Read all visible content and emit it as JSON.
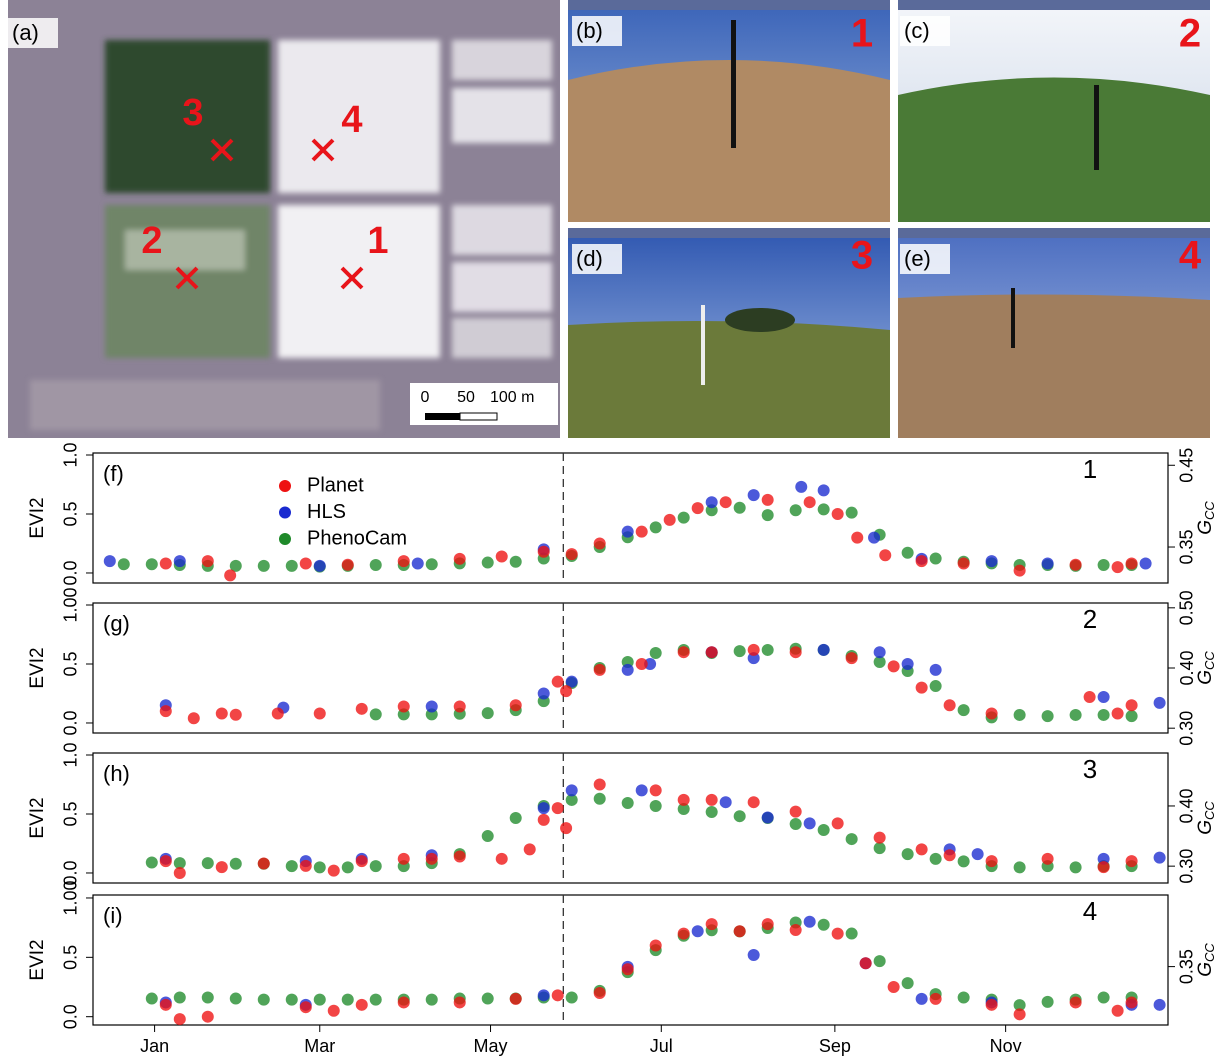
{
  "images": {
    "satellite": {
      "label": "(a)",
      "sites": [
        "1",
        "2",
        "3",
        "4"
      ],
      "scale": [
        "0",
        "50",
        "100 m"
      ]
    },
    "photos": [
      {
        "label": "(b)",
        "site": "1"
      },
      {
        "label": "(c)",
        "site": "2"
      },
      {
        "label": "(d)",
        "site": "3"
      },
      {
        "label": "(e)",
        "site": "4"
      }
    ]
  },
  "chart_data": [
    {
      "type": "scatter",
      "panel_label": "(f)",
      "site_label": "1",
      "ylabel": "EVI2",
      "y2label": "G",
      "y2label_sub": "CC",
      "xlim": [
        -21,
        363
      ],
      "ylim": [
        -0.085,
        1.017
      ],
      "yticks": [
        {
          "value": 0,
          "label": "0.0"
        },
        0.5,
        {
          "value": 1,
          "label": "1.0"
        }
      ],
      "y2lim": [
        0.306,
        0.465
      ],
      "y2ticks": [
        0.35,
        0.45
      ],
      "vline": 147,
      "series": [
        {
          "name": "Planet",
          "color": "#ee1111",
          "x": [
            5,
            20,
            28,
            55,
            70,
            90,
            110,
            125,
            140,
            150,
            160,
            175,
            185,
            195,
            205,
            220,
            235,
            245,
            252,
            262,
            275,
            290,
            310,
            330,
            345,
            350
          ],
          "values": [
            0.08,
            0.1,
            -0.02,
            0.08,
            0.07,
            0.1,
            0.12,
            0.14,
            0.18,
            0.16,
            0.25,
            0.35,
            0.45,
            0.55,
            0.6,
            0.62,
            0.6,
            0.5,
            0.3,
            0.15,
            0.1,
            0.08,
            0.02,
            0.07,
            0.05,
            0.08
          ]
        },
        {
          "name": "HLS",
          "color": "#1a2ad0",
          "x": [
            -15,
            10,
            60,
            95,
            140,
            170,
            200,
            215,
            232,
            240,
            258,
            275,
            300,
            320,
            355
          ],
          "values": [
            0.1,
            0.1,
            0.06,
            0.08,
            0.2,
            0.35,
            0.6,
            0.66,
            0.73,
            0.7,
            0.3,
            0.12,
            0.1,
            0.08,
            0.08
          ]
        },
        {
          "name": "PhenoCam",
          "color": "#1f8a2a",
          "axis": "y2",
          "x": [
            -10,
            0,
            10,
            20,
            30,
            40,
            50,
            60,
            70,
            80,
            90,
            100,
            110,
            120,
            130,
            140,
            150,
            160,
            170,
            180,
            190,
            200,
            210,
            220,
            230,
            240,
            250,
            260,
            270,
            280,
            290,
            300,
            310,
            320,
            330,
            340,
            350
          ],
          "values": [
            0.329,
            0.329,
            0.328,
            0.327,
            0.327,
            0.327,
            0.327,
            0.326,
            0.327,
            0.328,
            0.328,
            0.329,
            0.33,
            0.331,
            0.332,
            0.336,
            0.339,
            0.35,
            0.362,
            0.374,
            0.386,
            0.395,
            0.398,
            0.389,
            0.395,
            0.396,
            0.392,
            0.365,
            0.343,
            0.336,
            0.332,
            0.33,
            0.328,
            0.328,
            0.327,
            0.328,
            0.328
          ]
        }
      ]
    },
    {
      "type": "scatter",
      "panel_label": "(g)",
      "site_label": "2",
      "ylabel": "EVI2",
      "y2label": "G",
      "y2label_sub": "CC",
      "xlim": [
        -21,
        363
      ],
      "ylim": [
        -0.085,
        1.017
      ],
      "yticks": [
        {
          "value": 0,
          "label": "0.0"
        },
        0.5,
        {
          "value": 1,
          "label": "1.00"
        }
      ],
      "y2lim": [
        0.292,
        0.508
      ],
      "y2ticks": [
        {
          "value": 0.3,
          "label": "0.30"
        },
        {
          "value": 0.4,
          "label": "0.40"
        },
        {
          "value": 0.5,
          "label": "0.50"
        }
      ],
      "vline": 147,
      "series": [
        {
          "color": "#ee1111",
          "x": [
            5,
            15,
            25,
            30,
            45,
            60,
            75,
            90,
            110,
            130,
            145,
            148,
            160,
            175,
            190,
            200,
            215,
            230,
            250,
            265,
            275,
            285,
            300,
            335,
            345,
            350
          ],
          "values": [
            0.1,
            0.04,
            0.08,
            0.07,
            0.08,
            0.08,
            0.12,
            0.14,
            0.14,
            0.15,
            0.35,
            0.27,
            0.45,
            0.5,
            0.6,
            0.6,
            0.62,
            0.6,
            0.55,
            0.48,
            0.3,
            0.15,
            0.08,
            0.22,
            0.08,
            0.15
          ]
        },
        {
          "color": "#1a2ad0",
          "x": [
            5,
            47,
            100,
            140,
            150,
            170,
            178,
            200,
            215,
            240,
            260,
            270,
            280,
            340,
            360
          ],
          "values": [
            0.15,
            0.13,
            0.14,
            0.25,
            0.35,
            0.45,
            0.5,
            0.6,
            0.55,
            0.62,
            0.6,
            0.5,
            0.45,
            0.22,
            0.17
          ]
        },
        {
          "color": "#1f8a2a",
          "axis": "y2",
          "x": [
            80,
            90,
            100,
            110,
            120,
            130,
            140,
            150,
            160,
            170,
            180,
            190,
            200,
            210,
            220,
            230,
            240,
            250,
            260,
            270,
            280,
            290,
            300,
            310,
            320,
            330,
            340,
            350
          ],
          "values": [
            0.323,
            0.323,
            0.323,
            0.324,
            0.325,
            0.33,
            0.345,
            0.375,
            0.4,
            0.41,
            0.425,
            0.43,
            0.425,
            0.428,
            0.43,
            0.432,
            0.43,
            0.42,
            0.41,
            0.395,
            0.37,
            0.33,
            0.318,
            0.322,
            0.32,
            0.322,
            0.322,
            0.32
          ]
        }
      ]
    },
    {
      "type": "scatter",
      "panel_label": "(h)",
      "site_label": "3",
      "ylabel": "EVI2",
      "y2label": "G",
      "y2label_sub": "CC",
      "xlim": [
        -21,
        363
      ],
      "ylim": [
        -0.085,
        1.017
      ],
      "yticks": [
        {
          "value": 0,
          "label": "0.0"
        },
        0.5,
        {
          "value": 1,
          "label": "1.0"
        }
      ],
      "y2lim": [
        0.272,
        0.488
      ],
      "y2ticks": [
        {
          "value": 0.3,
          "label": "0.30"
        },
        {
          "value": 0.4,
          "label": "0.40"
        }
      ],
      "vline": 147,
      "series": [
        {
          "color": "#ee1111",
          "x": [
            5,
            10,
            25,
            40,
            55,
            65,
            75,
            90,
            100,
            110,
            125,
            135,
            140,
            145,
            148,
            160,
            180,
            190,
            200,
            215,
            230,
            245,
            260,
            275,
            285,
            300,
            320,
            340,
            350
          ],
          "values": [
            0.1,
            0,
            0.05,
            0.08,
            0.06,
            0.02,
            0.1,
            0.12,
            0.12,
            0.14,
            0.12,
            0.2,
            0.45,
            0.55,
            0.38,
            0.75,
            0.7,
            0.62,
            0.62,
            0.6,
            0.52,
            0.42,
            0.3,
            0.2,
            0.15,
            0.1,
            0.12,
            0.05,
            0.1
          ]
        },
        {
          "color": "#1a2ad0",
          "x": [
            5,
            55,
            75,
            100,
            140,
            150,
            175,
            205,
            220,
            235,
            285,
            295,
            340,
            360
          ],
          "values": [
            0.12,
            0.1,
            0.12,
            0.15,
            0.55,
            0.7,
            0.7,
            0.6,
            0.47,
            0.42,
            0.2,
            0.16,
            0.12,
            0.13
          ]
        },
        {
          "color": "#1f8a2a",
          "axis": "y2",
          "x": [
            0,
            10,
            20,
            30,
            40,
            50,
            60,
            70,
            80,
            90,
            100,
            110,
            120,
            130,
            140,
            150,
            160,
            170,
            180,
            190,
            200,
            210,
            220,
            230,
            240,
            250,
            260,
            270,
            280,
            290,
            300,
            310,
            320,
            330,
            340,
            350
          ],
          "values": [
            0.306,
            0.305,
            0.305,
            0.304,
            0.304,
            0.3,
            0.298,
            0.298,
            0.3,
            0.3,
            0.305,
            0.32,
            0.35,
            0.38,
            0.4,
            0.41,
            0.412,
            0.405,
            0.4,
            0.395,
            0.39,
            0.383,
            0.38,
            0.37,
            0.36,
            0.345,
            0.33,
            0.32,
            0.312,
            0.308,
            0.3,
            0.298,
            0.3,
            0.298,
            0.3,
            0.3
          ]
        }
      ]
    },
    {
      "type": "scatter",
      "panel_label": "(i)",
      "site_label": "4",
      "ylabel": "EVI2",
      "y2label": "G",
      "y2label_sub": "CC",
      "xlim": [
        -21,
        363
      ],
      "ylim": [
        -0.07,
        1.025
      ],
      "yticks": [
        {
          "value": 0,
          "label": "0.0"
        },
        0.5,
        {
          "value": 1,
          "label": "1.00"
        }
      ],
      "y2lim": [
        0.297,
        0.415
      ],
      "y2ticks": [
        0.35
      ],
      "vline": 147,
      "xticks": [
        {
          "value": 1,
          "label": "Jan"
        },
        {
          "value": 60,
          "label": "Mar"
        },
        {
          "value": 121,
          "label": "May"
        },
        {
          "value": 182,
          "label": "Jul"
        },
        {
          "value": 244,
          "label": "Sep"
        },
        {
          "value": 305,
          "label": "Nov"
        }
      ],
      "series": [
        {
          "color": "#ee1111",
          "x": [
            5,
            10,
            20,
            55,
            65,
            75,
            90,
            110,
            130,
            145,
            160,
            170,
            180,
            190,
            200,
            210,
            220,
            230,
            245,
            255,
            265,
            280,
            300,
            310,
            330,
            345,
            350
          ],
          "values": [
            0.1,
            -0.02,
            0,
            0.08,
            0.05,
            0.1,
            0.12,
            0.12,
            0.15,
            0.18,
            0.2,
            0.4,
            0.6,
            0.7,
            0.78,
            0.72,
            0.78,
            0.73,
            0.7,
            0.45,
            0.25,
            0.15,
            0.1,
            0.02,
            0.12,
            0.05,
            0.12
          ]
        },
        {
          "color": "#1a2ad0",
          "x": [
            5,
            55,
            140,
            170,
            195,
            215,
            235,
            255,
            275,
            300,
            350,
            360
          ],
          "values": [
            0.12,
            0.1,
            0.18,
            0.42,
            0.72,
            0.52,
            0.8,
            0.45,
            0.15,
            0.12,
            0.1,
            0.1
          ]
        },
        {
          "color": "#1f8a2a",
          "axis": "y2",
          "x": [
            0,
            10,
            20,
            30,
            40,
            50,
            60,
            70,
            80,
            90,
            100,
            110,
            120,
            130,
            140,
            150,
            160,
            170,
            180,
            190,
            200,
            210,
            220,
            230,
            240,
            250,
            260,
            270,
            280,
            290,
            300,
            310,
            320,
            330,
            340,
            350
          ],
          "values": [
            0.321,
            0.322,
            0.322,
            0.321,
            0.32,
            0.32,
            0.32,
            0.32,
            0.32,
            0.32,
            0.32,
            0.321,
            0.321,
            0.321,
            0.322,
            0.322,
            0.328,
            0.345,
            0.365,
            0.378,
            0.383,
            0.382,
            0.385,
            0.39,
            0.388,
            0.38,
            0.355,
            0.335,
            0.325,
            0.322,
            0.32,
            0.315,
            0.318,
            0.32,
            0.322,
            0.322
          ]
        }
      ]
    }
  ]
}
